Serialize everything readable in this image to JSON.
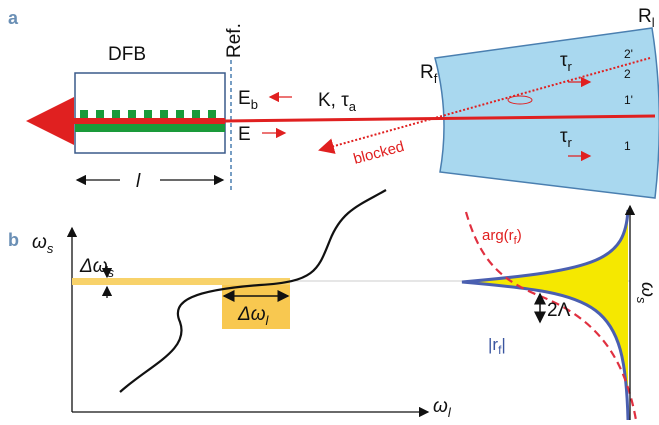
{
  "panel_a": {
    "label": "a",
    "dfb": "DFB",
    "ref": "Ref.",
    "e_b": {
      "base": "E",
      "sub": "b"
    },
    "e": "E",
    "k_tau": {
      "base": "K, τ",
      "sub": "a"
    },
    "r_f": {
      "base": "R",
      "sub": "f"
    },
    "r_l": {
      "base": "R",
      "sub": "l"
    },
    "tau_top": {
      "base": "τ",
      "sub": "r"
    },
    "tau_bottom": {
      "base": "τ",
      "sub": "r"
    },
    "ray_labels": [
      "2'",
      "2",
      "1'",
      "1"
    ],
    "blocked": "blocked",
    "length": "l"
  },
  "panel_b": {
    "label": "b",
    "omega_s": {
      "base": "ω",
      "sub": "s"
    },
    "d_omega_s": {
      "base": "Δω",
      "sub": "s"
    },
    "d_omega_l": {
      "base": "Δω",
      "sub": "l"
    },
    "omega_l": {
      "base": "ω",
      "sub": "l"
    },
    "arg_rf": {
      "base": "arg(r",
      "sub": "f",
      "end": ")"
    },
    "two_lambda": "2Λ",
    "abs_rf": {
      "base": "|r",
      "sub": "f",
      "end": "|"
    },
    "omega_s_right": {
      "base": "ω",
      "sub": "s"
    }
  }
}
